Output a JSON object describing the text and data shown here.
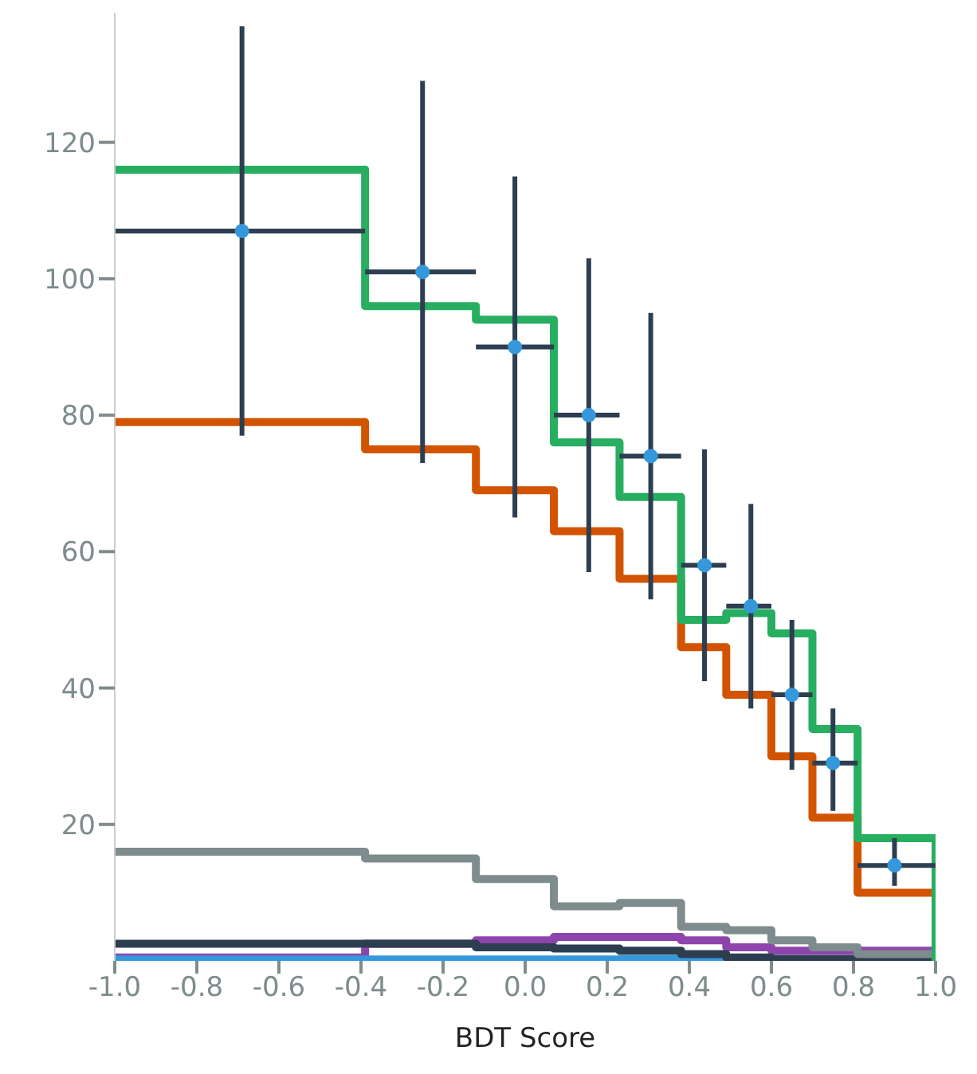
{
  "chart_data": {
    "type": "histogram",
    "xlabel": "BDT Score",
    "bins": [
      -1,
      -0.39,
      -0.12,
      0.07,
      0.23,
      0.38,
      0.49,
      0.6,
      0.7,
      0.81,
      1
    ],
    "xlim": [
      -1,
      1
    ],
    "xticks": [
      {
        "value": -1,
        "label": "-1.0"
      },
      {
        "value": -0.8,
        "label": "-0.8"
      },
      {
        "value": -0.6,
        "label": "-0.6"
      },
      {
        "value": -0.4,
        "label": "-0.4"
      },
      {
        "value": -0.2,
        "label": "-0.2"
      },
      {
        "value": 0,
        "label": "0.0"
      },
      {
        "value": 0.2,
        "label": "0.2"
      },
      {
        "value": 0.4,
        "label": "0.4"
      },
      {
        "value": 0.6,
        "label": "0.6"
      },
      {
        "value": 0.8,
        "label": "0.8"
      },
      {
        "value": 1,
        "label": "1.0"
      }
    ],
    "ylim": [
      0,
      139
    ],
    "yticks": [
      20,
      40,
      60,
      80,
      100,
      120
    ],
    "grid": false,
    "series": [
      {
        "color": "#8e44ad",
        "values": [
          0.5,
          2.5,
          3,
          3.5,
          3.5,
          3,
          2,
          1.5,
          1.5,
          1.5
        ]
      },
      {
        "color": "#3498db",
        "values": [
          0.2,
          0.2,
          0.2,
          0.2,
          0.3,
          0.3,
          0.2,
          0.2,
          0.2,
          0.2
        ]
      },
      {
        "color": "#2c3e50",
        "values": [
          2.5,
          2.5,
          2,
          1.8,
          1.5,
          1,
          0.5,
          0.3,
          0.3,
          0.3
        ]
      },
      {
        "color": "#7f8c8d",
        "values": [
          16,
          15,
          12,
          8,
          8.5,
          5,
          4.5,
          3,
          2,
          1
        ]
      },
      {
        "color": "#d35400",
        "values": [
          79,
          75,
          69,
          63,
          56,
          46,
          39,
          30,
          21,
          10
        ]
      },
      {
        "color": "#27ae60",
        "values": [
          116,
          96,
          94,
          76,
          68,
          50,
          51,
          48,
          34,
          18
        ]
      },
      {
        "type": "scatter",
        "color": "#3498db",
        "marker": "circle",
        "x": [
          -0.69,
          -0.25,
          -0.025,
          0.155,
          0.306,
          0.437,
          0.55,
          0.65,
          0.75,
          0.9
        ],
        "values": [
          107,
          101,
          90,
          80,
          74,
          58,
          52,
          39,
          29,
          14
        ],
        "errors": [
          [
            77,
            137
          ],
          [
            73,
            129
          ],
          [
            65,
            115
          ],
          [
            57,
            103
          ],
          [
            53,
            95
          ],
          [
            41,
            75
          ],
          [
            37,
            67
          ],
          [
            28,
            50
          ],
          [
            22,
            37
          ],
          [
            11,
            18
          ]
        ],
        "xerrors": [
          [
            -1,
            -0.39
          ],
          [
            -0.39,
            -0.12
          ],
          [
            -0.12,
            0.07
          ],
          [
            0.07,
            0.23
          ],
          [
            0.23,
            0.38
          ],
          [
            0.38,
            0.49
          ],
          [
            0.49,
            0.6
          ],
          [
            0.6,
            0.7
          ],
          [
            0.7,
            0.81
          ],
          [
            0.81,
            1
          ]
        ]
      }
    ]
  }
}
